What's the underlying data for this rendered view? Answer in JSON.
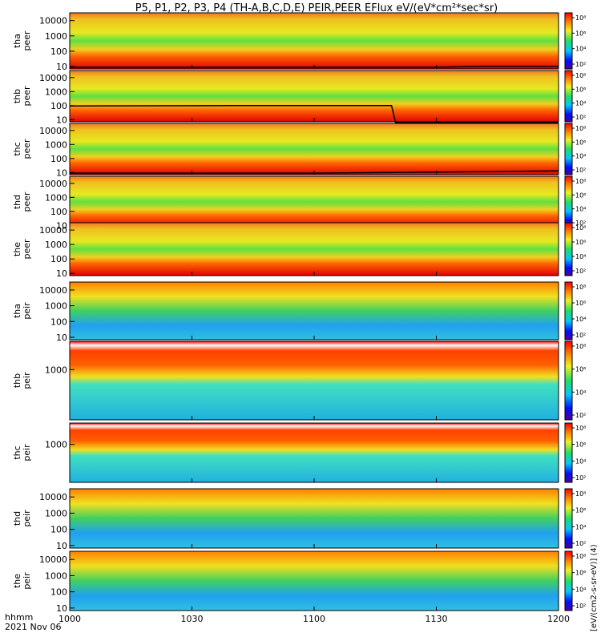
{
  "title": "P5, P1, P2, P3, P4 (TH-A,B,C,D,E) PEIR,PEER EFlux eV/(eV*cm²*sec*sr)",
  "x_axis": {
    "label_line1": "hhmm",
    "label_line2": "2021 Nov 06",
    "ticks": [
      "1000",
      "1030",
      "1100",
      "1130",
      "1200"
    ]
  },
  "colorbar": {
    "ticks": [
      "10⁸",
      "10⁶",
      "10⁴",
      "10²"
    ],
    "bottom_label": "[eV/(cm2-s-sr-eV)] (4)"
  },
  "chart_data": [
    {
      "type": "heatmap",
      "probe": "tha",
      "species": "peer",
      "ylabel": [
        "tha",
        "peer"
      ],
      "yticks": [
        "10000",
        "1000",
        "100",
        "10"
      ],
      "yscale": "log",
      "ylim": [
        7,
        32000
      ],
      "xlim": [
        "10:00",
        "12:00"
      ],
      "trace": [
        [
          0,
          9
        ],
        [
          30,
          9
        ],
        [
          60,
          9
        ],
        [
          90,
          9
        ],
        [
          100,
          10
        ],
        [
          120,
          10
        ]
      ]
    },
    {
      "type": "heatmap",
      "probe": "thb",
      "species": "peer",
      "ylabel": [
        "thb",
        "peer"
      ],
      "yticks": [
        "10000",
        "1000",
        "100",
        "10"
      ],
      "yscale": "log",
      "ylim": [
        7,
        32000
      ],
      "xlim": [
        "10:00",
        "12:00"
      ],
      "trace": [
        [
          0,
          95
        ],
        [
          40,
          100
        ],
        [
          79,
          100
        ],
        [
          80,
          6
        ],
        [
          120,
          6
        ]
      ]
    },
    {
      "type": "heatmap",
      "probe": "thc",
      "species": "peer",
      "ylabel": [
        "thc",
        "peer"
      ],
      "yticks": [
        "10000",
        "1000",
        "100",
        "10"
      ],
      "yscale": "log",
      "ylim": [
        7,
        32000
      ],
      "xlim": [
        "10:00",
        "12:00"
      ],
      "trace": [
        [
          0,
          9
        ],
        [
          60,
          9
        ],
        [
          80,
          10
        ],
        [
          120,
          13
        ]
      ]
    },
    {
      "type": "heatmap",
      "probe": "thd",
      "species": "peer",
      "ylabel": [
        "thd",
        "peer"
      ],
      "yticks": [
        "10000",
        "1000",
        "100",
        "10"
      ],
      "yscale": "log",
      "ylim": [
        7,
        32000
      ],
      "xlim": [
        "10:00",
        "12:00"
      ],
      "trace": [
        [
          0,
          9
        ],
        [
          60,
          9
        ],
        [
          75,
          11
        ],
        [
          100,
          12
        ],
        [
          120,
          14
        ]
      ]
    },
    {
      "type": "heatmap",
      "probe": "the",
      "species": "peer",
      "ylabel": [
        "the",
        "peer"
      ],
      "yticks": [
        "10000",
        "1000",
        "100",
        "10"
      ],
      "yscale": "log",
      "ylim": [
        7,
        32000
      ],
      "xlim": [
        "10:00",
        "12:00"
      ]
    },
    {
      "type": "heatmap",
      "probe": "tha",
      "species": "peir",
      "ylabel": [
        "tha",
        "peir"
      ],
      "yticks": [
        "10000",
        "1000",
        "100",
        "10"
      ],
      "yscale": "log",
      "ylim": [
        7,
        32000
      ],
      "xlim": [
        "10:00",
        "12:00"
      ]
    },
    {
      "type": "heatmap",
      "probe": "thb",
      "species": "peir",
      "ylabel": [
        "thb",
        "peir"
      ],
      "yticks": [
        "1000"
      ],
      "yscale": "log",
      "ylim": [
        7,
        32000
      ],
      "xlim": [
        "10:00",
        "12:00"
      ]
    },
    {
      "type": "heatmap",
      "probe": "thc",
      "species": "peir",
      "ylabel": [
        "thc",
        "peir"
      ],
      "yticks": [
        "1000"
      ],
      "yscale": "log",
      "ylim": [
        7,
        32000
      ],
      "xlim": [
        "10:00",
        "12:00"
      ]
    },
    {
      "type": "heatmap",
      "probe": "thd",
      "species": "peir",
      "ylabel": [
        "thd",
        "peir"
      ],
      "yticks": [
        "10000",
        "1000",
        "100",
        "10"
      ],
      "yscale": "log",
      "ylim": [
        7,
        32000
      ],
      "xlim": [
        "10:00",
        "12:00"
      ]
    },
    {
      "type": "heatmap",
      "probe": "the",
      "species": "peir",
      "ylabel": [
        "the",
        "peir"
      ],
      "yticks": [
        "10000",
        "1000",
        "100",
        "10"
      ],
      "yscale": "log",
      "ylim": [
        7,
        32000
      ],
      "xlim": [
        "10:00",
        "12:00"
      ]
    }
  ]
}
